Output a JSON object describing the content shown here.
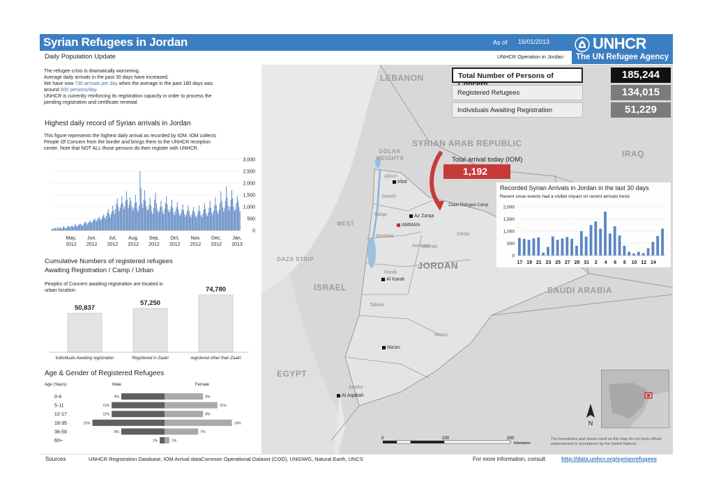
{
  "header": {
    "title": "Syrian Refugees in Jordan",
    "subtitle": "Daily Population Update",
    "as_of_label": "As of",
    "as_of_date": "16/01/2013",
    "operation": "UNHCR Operation in Jordan",
    "logo_text": "UNHCR",
    "logo_sub": "The UN Refugee Agency"
  },
  "intro": {
    "line1": "The refugee crisis is dramatically worsening.",
    "line2": "Average daily arrivals in the past 30 days have increased.",
    "line3_a": "We have now ",
    "line3_hl": "730 arrivals per day",
    "line3_b": " when the average in the past 180 days was",
    "line4_a": "around ",
    "line4_hl": "600 persons/day",
    "line4_b": ".",
    "line5": "UNHCR is currently reinforcing its registration capacity in order to process the",
    "line6": "pending registration and certificate renewal."
  },
  "stats": {
    "total_label": "Total Number of Persons of Concern",
    "total_value": "185,244",
    "registered_label": "Registered Refugees",
    "registered_value": "134,015",
    "awaiting_label": "Individuals Awaiting Registration",
    "awaiting_value": "51,229",
    "today_label": "Total arrival today (IOM)",
    "today_value": "1,192"
  },
  "daily": {
    "title": "Highest daily record of Syrian arrivals in Jordan",
    "desc1": "This figure represents the highest daily arrival as recorded by IOM. IOM collects",
    "desc2": "People Of Concern from the border and brings them to the UNHCR reception",
    "desc3": "center. Note that NOT ALL those persons do then register with UNHCR."
  },
  "cumulative": {
    "title1": "Cumulative Numbers of registered refugees",
    "title2": "Awaiting Registration / Camp / Urban",
    "note1": "Peoples of Concern awaiting registration are located in",
    "note2": "urban location"
  },
  "age": {
    "title": "Age & Gender of Registered Refugees",
    "col_age": "Age (Years)",
    "col_male": "Male",
    "col_female": "Female"
  },
  "recent": {
    "title": "Recorded Syrian Arrivals  in Jordan in the last 30 days",
    "note": "Recent snow events had a visible impact on recent arrivals trend"
  },
  "map": {
    "countries": {
      "lebanon": "LEBANON",
      "syria": "SYRIAN ARAB REPUBLIC",
      "iraq": "IRAQ",
      "jordan": "JORDAN",
      "israel": "ISRAEL",
      "gaza": "GAZA STRIP",
      "west_bank": "WEST",
      "saudi": "SAUDI ARABIA",
      "egypt": "EGYPT",
      "golan1": "GOLAN",
      "golan2": "HEIGHTS"
    },
    "cities": {
      "irbid": "Irbid",
      "zarqa": "Az Zarqa",
      "amman": "AMMAN",
      "karak": "Al Karak",
      "maan": "Ma'an",
      "aqaba": "Al Aqabah",
      "zaatri": "Zaatri Refugee Camp"
    },
    "regions": {
      "ajloun": "Ajloun",
      "jarash": "Jarash",
      "balqa": "Balqa",
      "madaba": "Madaba",
      "mafraq": "Mafraq",
      "zarqa_gov": "Zarqa",
      "amman_gov": "Amman",
      "karak_gov": "Karak",
      "tafiela": "Tafiela",
      "maan_gov": "Ma'an",
      "aqaba_gov": "Aqaba"
    },
    "scale": [
      "0",
      "100",
      "200",
      "Kilometers"
    ],
    "north": "N",
    "disclaimer": "The boundaries and names used on this map do not imply official endorsement or acceptance by the United Nations."
  },
  "footer": {
    "sources_label": "Sources",
    "sources_text": "UNHCR Registration Database, IOM Arrival dataCommon Operational Dataset (COD), UNGIWG, Natural Earth, UNCS",
    "more_info": "For more information, consult",
    "link": "http://data.unhcr.org/syrianrefugees"
  },
  "colors": {
    "brand_blue": "#3c7ec2",
    "bar_blue": "#5b86c3",
    "alert_red": "#c63b38",
    "male_gray": "#5f605e",
    "female_gray": "#a9aaa7"
  },
  "chart_data": [
    {
      "type": "bar",
      "title": "Highest daily record of Syrian arrivals in Jordan",
      "x_tick_labels": [
        "May,\n2012",
        "Jun,\n2012",
        "Jul,\n2012",
        "Aug,\n2012",
        "Sep,\n2012",
        "Oct,\n2012",
        "Nov,\n2012",
        "Dec,\n2012",
        "Jan,\n2013"
      ],
      "y_tick_labels": [
        "0",
        "500",
        "1,000",
        "1,500",
        "2,000",
        "2,500",
        "3,000"
      ],
      "ylim": [
        0,
        3000
      ],
      "values": [
        60,
        80,
        40,
        120,
        90,
        50,
        150,
        70,
        110,
        130,
        90,
        60,
        140,
        180,
        120,
        90,
        100,
        160,
        210,
        150,
        130,
        180,
        200,
        170,
        140,
        230,
        260,
        190,
        170,
        220,
        250,
        300,
        260,
        210,
        190,
        280,
        330,
        380,
        300,
        250,
        320,
        350,
        420,
        360,
        310,
        400,
        450,
        500,
        430,
        380,
        460,
        520,
        580,
        480,
        420,
        520,
        600,
        680,
        560,
        480,
        620,
        750,
        900,
        700,
        560,
        680,
        800,
        1050,
        850,
        700,
        900,
        1150,
        1350,
        1000,
        820,
        950,
        1100,
        1450,
        1150,
        900,
        1000,
        1250,
        1650,
        1300,
        950,
        1100,
        1400,
        1250,
        1000,
        850,
        950,
        1150,
        1500,
        1200,
        900,
        800,
        1050,
        2500,
        1800,
        1150,
        950,
        1300,
        1700,
        1250,
        1000,
        850,
        900,
        1100,
        1400,
        1050,
        800,
        700,
        950,
        1300,
        1600,
        1150,
        900,
        750,
        820,
        980,
        1250,
        1000,
        780,
        680,
        900,
        1150,
        1450,
        1100,
        880,
        760,
        840,
        1000,
        1300,
        950,
        760,
        650,
        800,
        980,
        1200,
        900,
        700,
        600,
        720,
        880,
        1100,
        850,
        680,
        580,
        700,
        860,
        1050,
        820,
        650,
        560,
        680,
        840,
        1000,
        780,
        620,
        540,
        660,
        820,
        1050,
        800,
        640,
        560,
        700,
        900,
        1150,
        880,
        700,
        600,
        760,
        960,
        1250,
        950,
        760,
        650,
        820,
        1050,
        1400,
        1050,
        820,
        700,
        880,
        1150,
        1650,
        1250,
        980,
        800,
        950,
        1250,
        1850,
        1400,
        1050,
        850,
        1000,
        1300,
        1700,
        1350,
        1000,
        820,
        900,
        1150,
        1450,
        1250,
        980,
        800
      ]
    },
    {
      "type": "bar",
      "title": "Cumulative Numbers of registered refugees Awaiting Registration / Camp / Urban",
      "categories": [
        "Individuals Awaiting registration",
        "Registered in Zaatri",
        "registered other than Zaatri"
      ],
      "values": [
        50837,
        57250,
        74780
      ],
      "value_labels": [
        "50,837",
        "57,250",
        "74,780"
      ]
    },
    {
      "type": "bar",
      "title": "Age & Gender of Registered Refugees",
      "categories": [
        "0-4",
        "5-11",
        "12-17",
        "18-35",
        "36-59",
        "60+"
      ],
      "series": [
        {
          "name": "Male",
          "values": [
            9,
            11,
            11,
            15,
            9,
            1
          ],
          "labels": [
            "9%",
            "11%",
            "11%",
            "15%",
            "9%",
            "1%"
          ]
        },
        {
          "name": "Female",
          "values": [
            8,
            11,
            8,
            14,
            7,
            1
          ],
          "labels": [
            "8%",
            "11%",
            "8%",
            "14%",
            "7%",
            "1%"
          ]
        }
      ]
    },
    {
      "type": "bar",
      "title": "Recorded Syrian Arrivals  in Jordan in the last 30 days",
      "x_tick_labels": [
        "17",
        "19",
        "21",
        "23",
        "25",
        "27",
        "29",
        "31",
        "2",
        "4",
        "6",
        "8",
        "10",
        "12",
        "14"
      ],
      "y_tick_labels": [
        "0",
        "500",
        "1,000",
        "1,500",
        "2,000"
      ],
      "ylim": [
        0,
        2000
      ],
      "values": [
        720,
        680,
        640,
        700,
        740,
        120,
        350,
        780,
        640,
        700,
        760,
        680,
        400,
        1000,
        780,
        1250,
        1400,
        1100,
        1800,
        900,
        1200,
        820,
        400,
        150,
        80,
        150,
        100,
        300,
        560,
        800,
        1100
      ]
    }
  ]
}
